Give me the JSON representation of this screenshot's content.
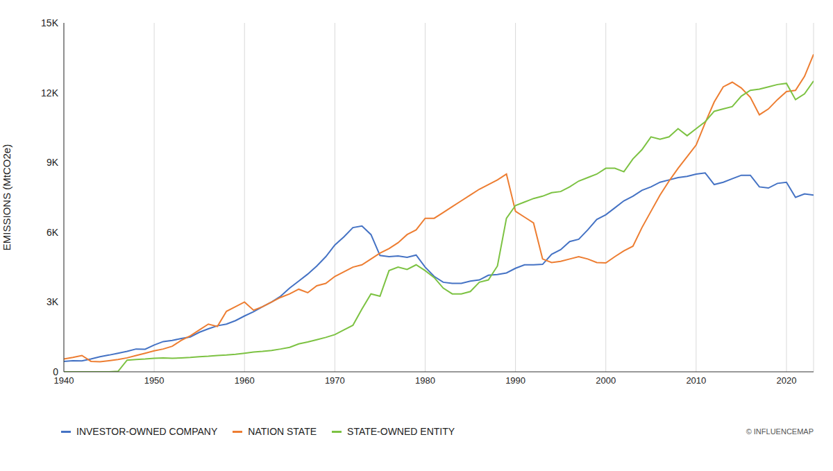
{
  "chart_data": {
    "type": "line",
    "y_label": "EMISSIONS (MtCO2e)",
    "annotation": "© INFLUENCEMAP",
    "x": [
      1940,
      1941,
      1942,
      1943,
      1944,
      1945,
      1946,
      1947,
      1948,
      1949,
      1950,
      1951,
      1952,
      1953,
      1954,
      1955,
      1956,
      1957,
      1958,
      1959,
      1960,
      1961,
      1962,
      1963,
      1964,
      1965,
      1966,
      1967,
      1968,
      1969,
      1970,
      1971,
      1972,
      1973,
      1974,
      1975,
      1976,
      1977,
      1978,
      1979,
      1980,
      1981,
      1982,
      1983,
      1984,
      1985,
      1986,
      1987,
      1988,
      1989,
      1990,
      1991,
      1992,
      1993,
      1994,
      1995,
      1996,
      1997,
      1998,
      1999,
      2000,
      2001,
      2002,
      2003,
      2004,
      2005,
      2006,
      2007,
      2008,
      2009,
      2010,
      2011,
      2012,
      2013,
      2014,
      2015,
      2016,
      2017,
      2018,
      2019,
      2020,
      2021,
      2022,
      2023
    ],
    "xlim": [
      1940,
      2023
    ],
    "xticks": [
      1940,
      1950,
      1960,
      1970,
      1980,
      1990,
      2000,
      2010,
      2020
    ],
    "ylim": [
      0,
      15000
    ],
    "yticks": [
      0,
      {
        "value": 3000,
        "label": "3K"
      },
      {
        "value": 6000,
        "label": "6K"
      },
      {
        "value": 9000,
        "label": "9K"
      },
      {
        "value": 12000,
        "label": "12K"
      },
      {
        "value": 15000,
        "label": "15K"
      }
    ],
    "grid": "x",
    "legend": "bottom-left",
    "series": [
      {
        "name": "INVESTOR-OWNED COMPANY",
        "color": "#4472c4",
        "values": [
          450,
          480,
          470,
          550,
          650,
          720,
          800,
          880,
          980,
          970,
          1150,
          1300,
          1350,
          1430,
          1500,
          1700,
          1850,
          1980,
          2050,
          2200,
          2400,
          2580,
          2800,
          3000,
          3250,
          3600,
          3900,
          4200,
          4550,
          4950,
          5450,
          5800,
          6200,
          6270,
          5900,
          5000,
          4950,
          4980,
          4920,
          5020,
          4500,
          4100,
          3850,
          3800,
          3800,
          3900,
          3950,
          4150,
          4180,
          4250,
          4450,
          4600,
          4600,
          4620,
          5050,
          5250,
          5600,
          5700,
          6100,
          6550,
          6750,
          7050,
          7350,
          7550,
          7800,
          7950,
          8150,
          8250,
          8350,
          8400,
          8500,
          8550,
          8050,
          8150,
          8300,
          8450,
          8450,
          7950,
          7900,
          8100,
          8150,
          7500,
          7650,
          7600
        ]
      },
      {
        "name": "NATION STATE",
        "color": "#ed7d31",
        "values": [
          550,
          620,
          700,
          450,
          430,
          480,
          530,
          600,
          700,
          800,
          900,
          980,
          1100,
          1350,
          1550,
          1800,
          2050,
          1950,
          2600,
          2800,
          3000,
          2650,
          2800,
          3000,
          3200,
          3350,
          3550,
          3400,
          3700,
          3800,
          4100,
          4300,
          4500,
          4600,
          4850,
          5100,
          5300,
          5550,
          5900,
          6100,
          6600,
          6600,
          6850,
          7100,
          7350,
          7600,
          7850,
          8050,
          8250,
          8500,
          6900,
          6650,
          6400,
          4850,
          4700,
          4750,
          4850,
          4950,
          4850,
          4700,
          4680,
          4950,
          5200,
          5400,
          6200,
          6900,
          7600,
          8200,
          8750,
          9250,
          9750,
          10700,
          11600,
          12250,
          12450,
          12200,
          11800,
          11050,
          11300,
          11700,
          12050,
          12100,
          12700,
          13650
        ]
      },
      {
        "name": "STATE-OWNED ENTITY",
        "color": "#7cc242",
        "values": [
          0,
          0,
          0,
          0,
          0,
          0,
          20,
          500,
          530,
          550,
          580,
          600,
          580,
          600,
          620,
          650,
          670,
          700,
          720,
          750,
          800,
          850,
          880,
          920,
          980,
          1050,
          1200,
          1280,
          1380,
          1480,
          1600,
          1800,
          2000,
          2700,
          3350,
          3250,
          4350,
          4500,
          4400,
          4600,
          4350,
          4050,
          3600,
          3350,
          3350,
          3450,
          3850,
          3950,
          4550,
          6600,
          7150,
          7300,
          7450,
          7550,
          7700,
          7750,
          7950,
          8200,
          8350,
          8500,
          8750,
          8750,
          8600,
          9150,
          9550,
          10100,
          10000,
          10100,
          10450,
          10150,
          10450,
          10750,
          11200,
          11300,
          11400,
          11850,
          12100,
          12150,
          12250,
          12350,
          12400,
          11700,
          11950,
          12500
        ]
      }
    ]
  }
}
